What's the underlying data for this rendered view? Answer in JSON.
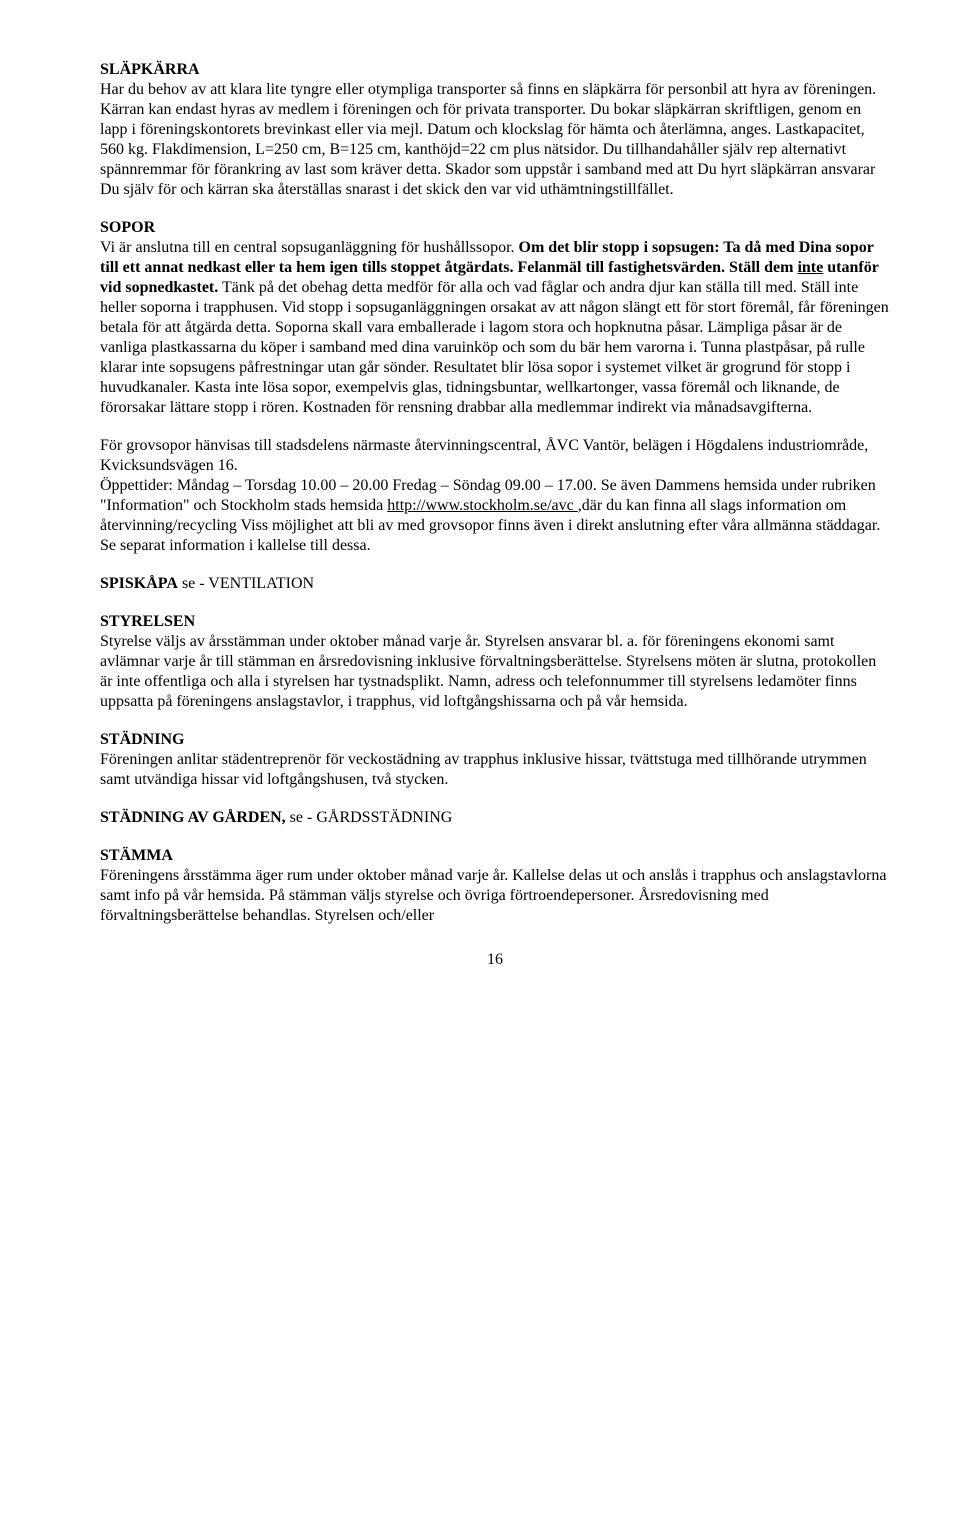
{
  "slapkarra": {
    "h": "SLÄPKÄRRA",
    "p1": "Har du behov av att klara lite tyngre eller otympliga transporter så finns en släpkärra för personbil att hyra av föreningen.",
    "p2": "Kärran kan endast hyras av medlem i föreningen och för privata transporter. Du bokar släpkärran skriftligen, genom en lapp i föreningskontorets brevinkast eller via mejl. Datum och klockslag för hämta och återlämna, anges. Lastkapacitet, 560 kg. Flakdimension, L=250 cm, B=125 cm, kanthöjd=22 cm plus nätsidor. Du tillhandahåller själv rep alternativt spännremmar för förankring av last som kräver detta. Skador som uppstår i samband med att Du hyrt släpkärran ansvarar Du själv för och kärran ska återställas snarast i det skick den var vid uthämtningstillfället."
  },
  "sopor": {
    "h": "SOPOR",
    "p1_a": "Vi är anslutna till en central sopsuganläggning för hushållssopor. ",
    "p1_b": "Om det blir stopp i sopsugen: Ta då med Dina sopor till ett annat nedkast eller ta hem igen tills stoppet åtgärdats. Felanmäl till fastighetsvärden. Ställ dem ",
    "p1_c": "inte",
    "p1_d": " utanför vid sopnedkastet.",
    "p1_e": " Tänk på det obehag detta medför för alla och vad fåglar och andra djur kan ställa till med. Ställ inte heller soporna i trapphusen. Vid stopp i sopsuganläggningen orsakat av att någon slängt ett för stort föremål, får föreningen betala för att åtgärda detta. Soporna skall vara emballerade i lagom stora och hopknutna påsar. Lämpliga påsar är de vanliga plastkassarna du köper i samband med dina varuinköp och som du bär hem varorna i. Tunna plastpåsar, på rulle klarar inte sopsugens påfrestningar utan går sönder. Resultatet blir lösa sopor i systemet vilket är grogrund för stopp i huvudkanaler. Kasta inte lösa sopor, exempelvis glas, tidningsbuntar, wellkartonger, vassa föremål och liknande, de förorsakar lättare stopp i rören. Kostnaden för rensning drabbar alla medlemmar indirekt via månadsavgifterna.",
    "p2_a": "För grovsopor hänvisas till stadsdelens närmaste återvinningscentral, ÅVC Vantör, belägen i Högdalens industriområde, Kvicksundsvägen 16.",
    "p2_b": "Öppettider: Måndag – Torsdag 10.00 – 20.00  Fredag – Söndag  09.00 – 17.00. Se även Dammens hemsida under rubriken \"Information\" och Stockholm stads hemsida ",
    "p2_link": "http://www.stockholm.se/avc ",
    "p2_c": ",där du kan finna all slags information om återvinning/recycling Viss möjlighet att bli av med grovsopor finns även i direkt anslutning efter våra allmänna städdagar. Se separat information i kallelse till dessa."
  },
  "spiskapa": {
    "h": "SPISKÅPA",
    "rest": " se - VENTILATION"
  },
  "styrelsen": {
    "h": "STYRELSEN",
    "p": "Styrelse väljs av årsstämman under oktober månad varje år. Styrelsen ansvarar bl. a. för föreningens ekonomi samt avlämnar varje år till stämman en årsredovisning inklusive förvaltningsberättelse. Styrelsens möten är slutna, protokollen är inte offentliga och alla i styrelsen har tystnadsplikt. Namn, adress och telefonnummer till styrelsens ledamöter finns uppsatta på föreningens anslagstavlor, i trapphus, vid loftgångshissarna och på vår hemsida."
  },
  "stadning": {
    "h": "STÄDNING",
    "p": "Föreningen anlitar städentreprenör för veckostädning av trapphus inklusive hissar, tvättstuga med tillhörande utrymmen samt utvändiga hissar vid loftgångshusen, två stycken."
  },
  "stadning_garden": {
    "h": "STÄDNING AV GÅRDEN,  ",
    "rest": "se - GÅRDSSTÄDNING"
  },
  "stamma": {
    "h": "STÄMMA",
    "p": "Föreningens årsstämma äger rum under oktober månad varje år. Kallelse delas ut och anslås i trapphus och anslagstavlorna samt info på vår hemsida. På stämman väljs styrelse och övriga förtroendepersoner. Årsredovisning med förvaltningsberättelse behandlas. Styrelsen och/eller"
  },
  "pageno": "16"
}
